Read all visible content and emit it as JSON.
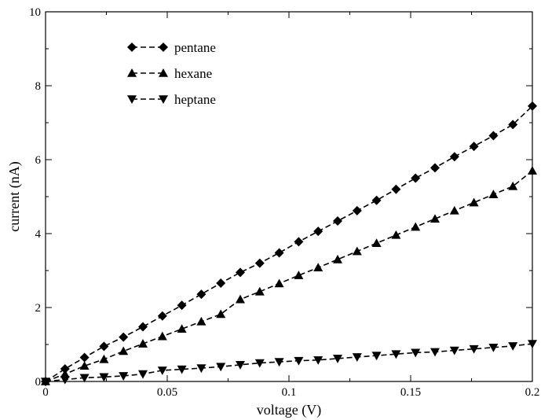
{
  "chart_data": {
    "type": "line",
    "title": "",
    "xlabel": "voltage (V)",
    "ylabel": "current (nA)",
    "xlim": [
      0,
      0.2
    ],
    "ylim": [
      0,
      10
    ],
    "xticks": [
      0,
      0.05,
      0.1,
      0.15,
      0.2
    ],
    "xtick_labels": [
      "0",
      "0.05",
      "0.1",
      "0.15",
      "0.2"
    ],
    "yticks": [
      0,
      2,
      4,
      6,
      8,
      10
    ],
    "ytick_labels": [
      "0",
      "2",
      "4",
      "6",
      "8",
      "10"
    ],
    "grid": false,
    "legend_position": "top-left",
    "series": [
      {
        "name": "pentane",
        "marker": "diamond",
        "line_style": "dashed",
        "color": "#000000",
        "x": [
          0,
          0.008,
          0.016,
          0.024,
          0.032,
          0.04,
          0.048,
          0.056,
          0.064,
          0.072,
          0.08,
          0.088,
          0.096,
          0.104,
          0.112,
          0.12,
          0.128,
          0.136,
          0.144,
          0.152,
          0.16,
          0.168,
          0.176,
          0.184,
          0.192,
          0.2
        ],
        "y": [
          0,
          0.34,
          0.65,
          0.95,
          1.2,
          1.48,
          1.77,
          2.06,
          2.36,
          2.66,
          2.95,
          3.2,
          3.48,
          3.78,
          4.06,
          4.34,
          4.62,
          4.9,
          5.2,
          5.5,
          5.78,
          6.08,
          6.36,
          6.65,
          6.95,
          7.45
        ]
      },
      {
        "name": "hexane",
        "marker": "triangle-up",
        "line_style": "dashed",
        "color": "#000000",
        "x": [
          0,
          0.008,
          0.016,
          0.024,
          0.032,
          0.04,
          0.048,
          0.056,
          0.064,
          0.072,
          0.08,
          0.088,
          0.096,
          0.104,
          0.112,
          0.12,
          0.128,
          0.136,
          0.144,
          0.152,
          0.16,
          0.168,
          0.176,
          0.184,
          0.192,
          0.2
        ],
        "y": [
          0,
          0.2,
          0.42,
          0.6,
          0.82,
          1.02,
          1.22,
          1.42,
          1.62,
          1.82,
          2.22,
          2.43,
          2.65,
          2.87,
          3.08,
          3.3,
          3.52,
          3.74,
          3.96,
          4.18,
          4.4,
          4.62,
          4.84,
          5.06,
          5.28,
          5.7
        ]
      },
      {
        "name": "heptane",
        "marker": "triangle-down",
        "line_style": "dashed",
        "color": "#000000",
        "x": [
          0,
          0.008,
          0.016,
          0.024,
          0.032,
          0.04,
          0.048,
          0.056,
          0.064,
          0.072,
          0.08,
          0.088,
          0.096,
          0.104,
          0.112,
          0.12,
          0.128,
          0.136,
          0.144,
          0.152,
          0.16,
          0.168,
          0.176,
          0.184,
          0.192,
          0.2
        ],
        "y": [
          0,
          0.05,
          0.1,
          0.12,
          0.15,
          0.2,
          0.3,
          0.33,
          0.36,
          0.4,
          0.45,
          0.5,
          0.53,
          0.56,
          0.58,
          0.62,
          0.66,
          0.7,
          0.74,
          0.78,
          0.8,
          0.84,
          0.88,
          0.92,
          0.96,
          1.02
        ]
      }
    ]
  }
}
